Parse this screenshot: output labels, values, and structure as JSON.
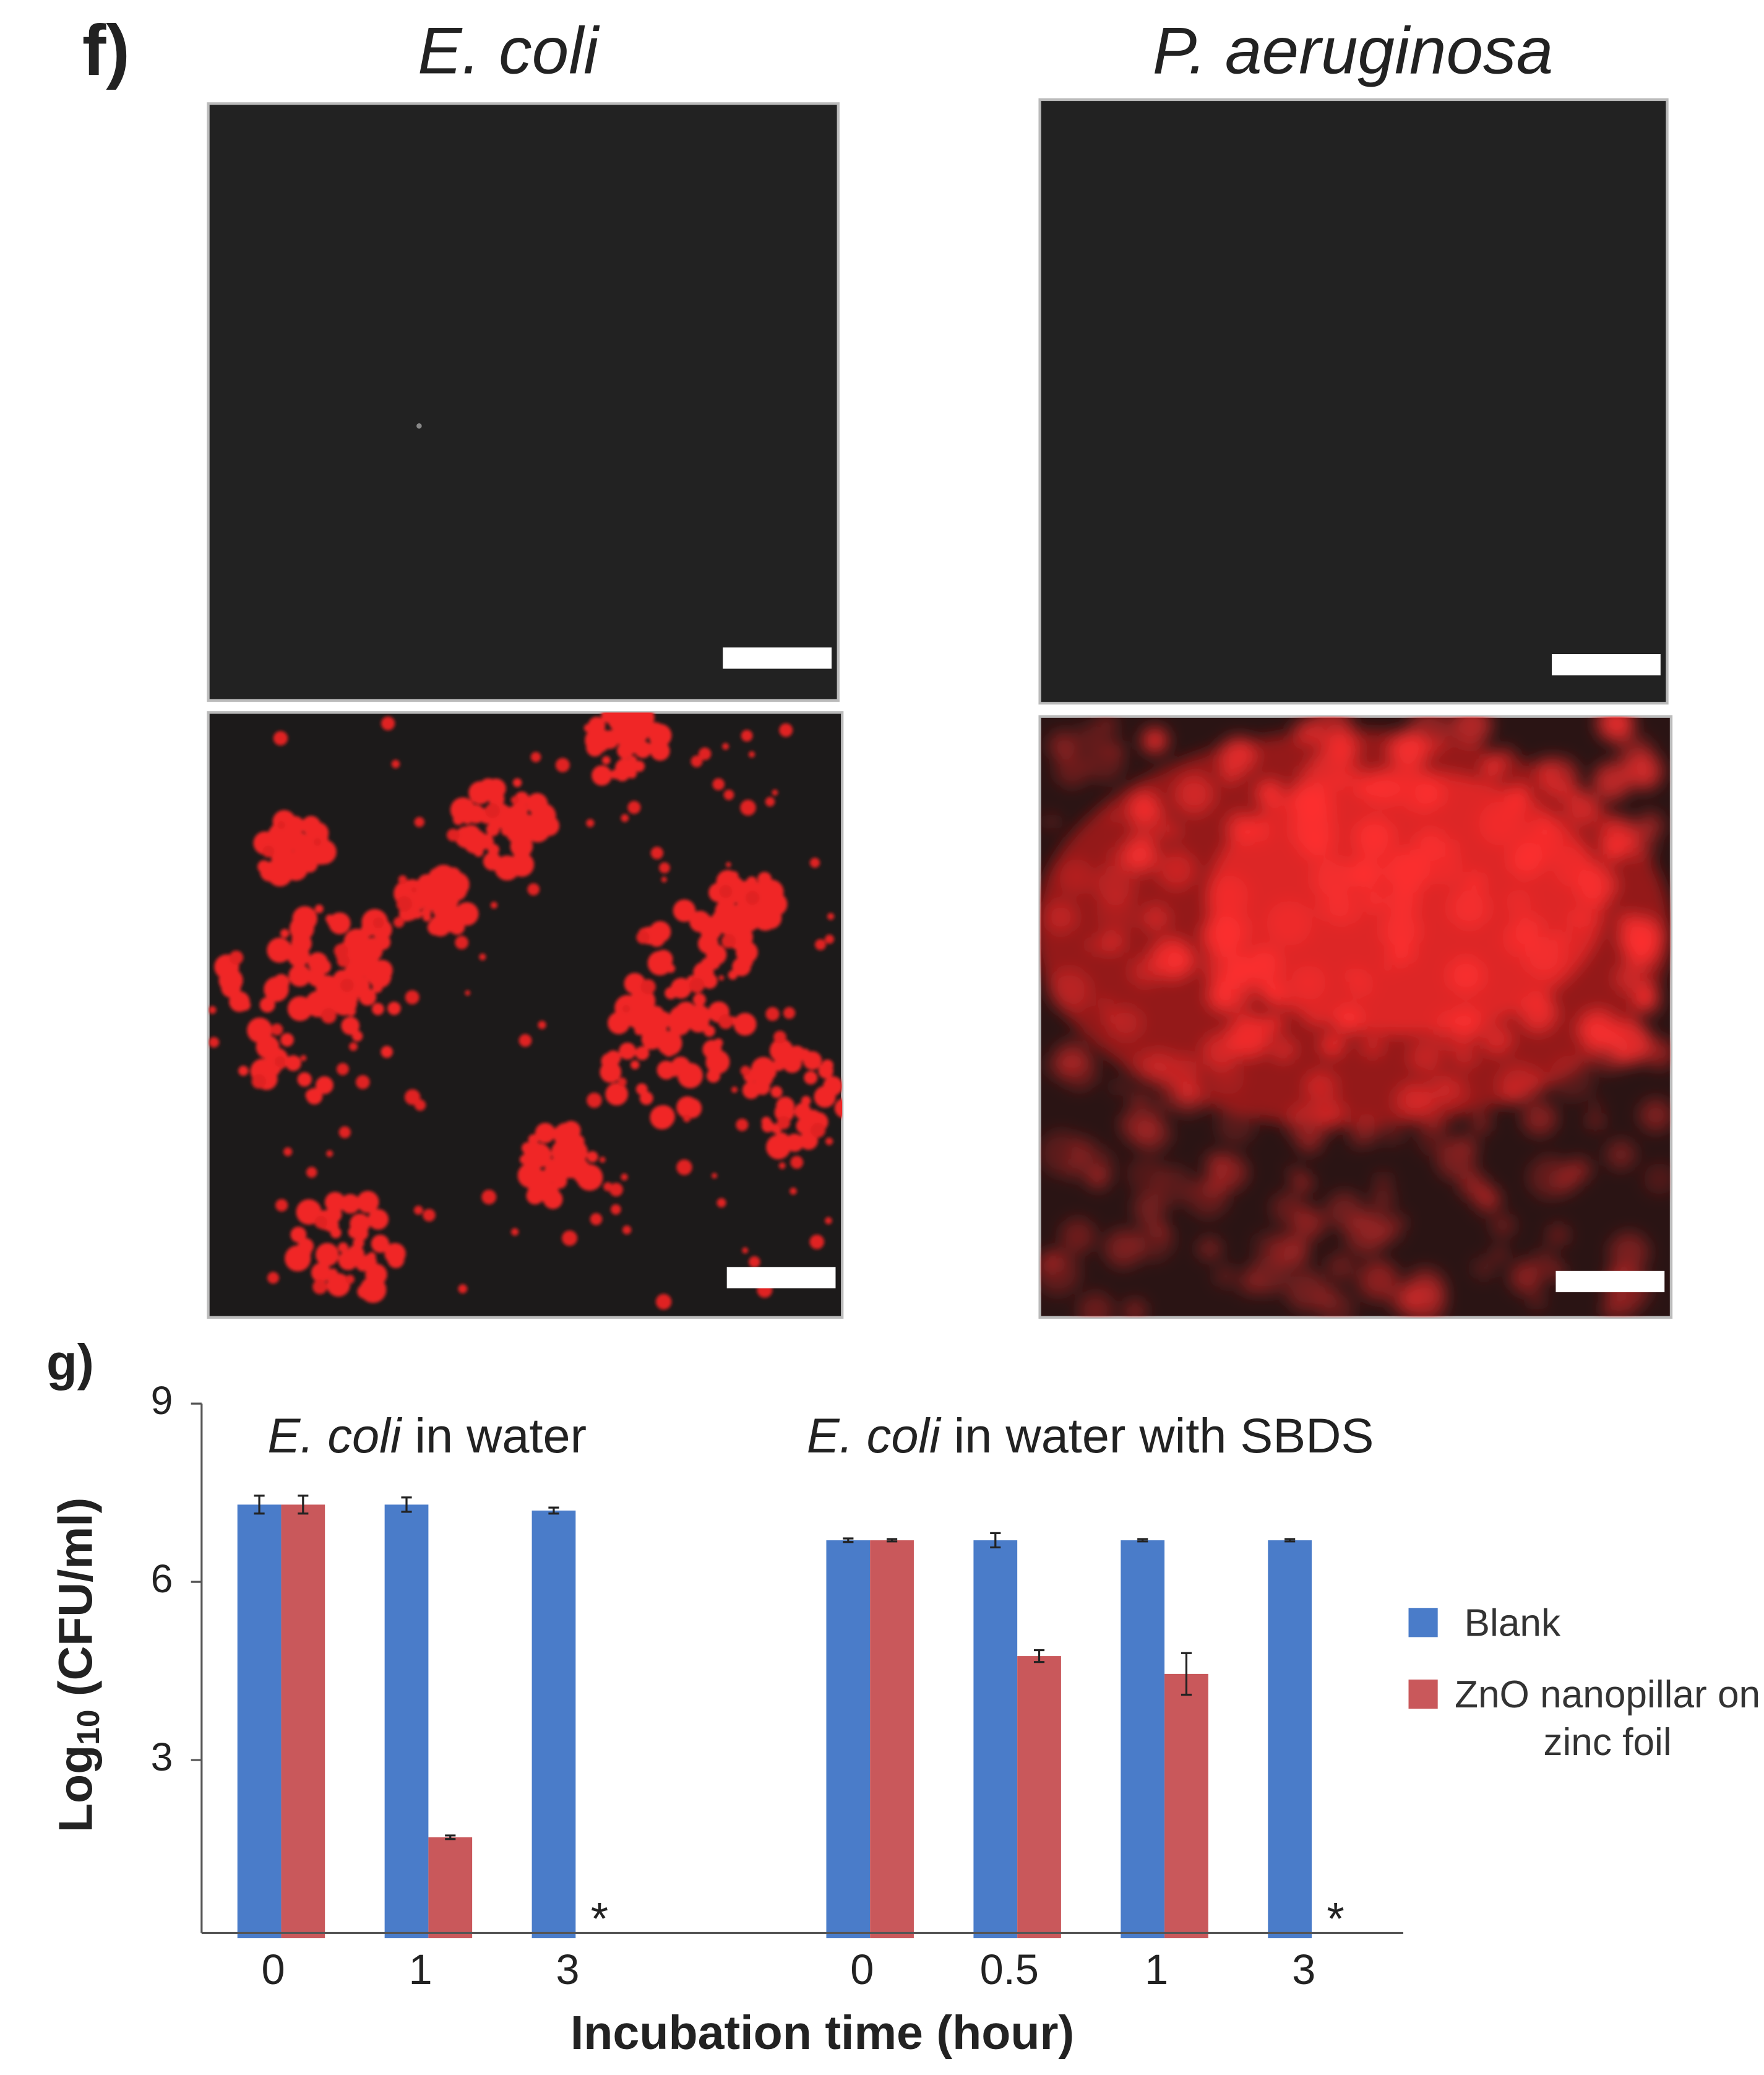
{
  "panel_f": {
    "label": "f)",
    "columns": [
      "E. coli",
      "P. aeruginosa"
    ]
  },
  "chart_data": {
    "type": "bar",
    "label": "g)",
    "groups": [
      {
        "title": [
          {
            "text": "E. coli",
            "italic": true
          },
          {
            "text": " in water"
          }
        ]
      },
      {
        "title": [
          {
            "text": "E. coli",
            "italic": true
          },
          {
            "text": " in water with SBDS"
          }
        ]
      }
    ],
    "categories": [
      "0",
      "1",
      "3",
      null,
      "0",
      "0.5",
      "1",
      "3"
    ],
    "series": [
      {
        "name": "Blank",
        "color": "#4a7cc9",
        "values": [
          7.3,
          7.3,
          7.2,
          null,
          6.7,
          6.7,
          6.7,
          6.7
        ],
        "errors": [
          0.15,
          0.12,
          0.05,
          null,
          0.03,
          0.12,
          0.02,
          0.02
        ]
      },
      {
        "name": "ZnO nanopillar on zinc foil",
        "color": "#c9585b",
        "values": [
          7.3,
          1.7,
          null,
          null,
          6.7,
          4.75,
          4.45,
          null
        ],
        "errors": [
          0.15,
          0.03,
          null,
          null,
          0.02,
          0.1,
          0.35,
          null
        ]
      }
    ],
    "annotations": [
      {
        "text": "*",
        "category": 2
      },
      {
        "text": "*",
        "category": 7
      }
    ],
    "ylabel": [
      "Log",
      "10",
      " (CFU/ml)"
    ],
    "xlabel": "Incubation time (hour)",
    "ylim": [
      0,
      9
    ],
    "yticks": [
      3,
      6,
      9
    ]
  }
}
